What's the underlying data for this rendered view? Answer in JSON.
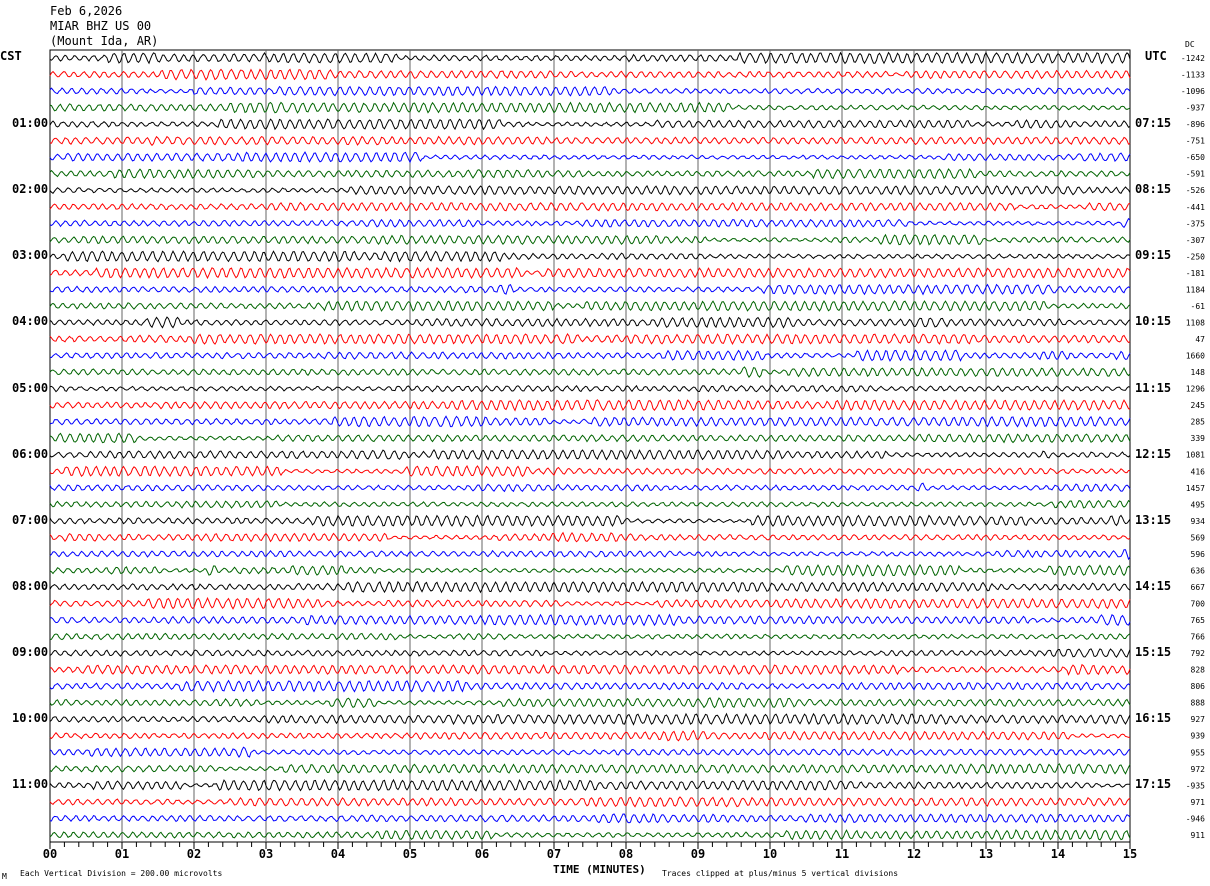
{
  "header": {
    "date": "Feb 6,2026",
    "station": "MIAR BHZ US 00",
    "location": "(Mount Ida, AR)"
  },
  "chart_data": {
    "type": "line",
    "subtype": "helicorder",
    "left_axis_label": "CST",
    "right_axis_label": "UTC",
    "dc_label": "DC",
    "left_hour_labels": [
      "01:00",
      "02:00",
      "03:00",
      "04:00",
      "05:00",
      "06:00",
      "07:00",
      "08:00",
      "09:00",
      "10:00",
      "11:00"
    ],
    "right_hour_labels": [
      "07:15",
      "08:15",
      "09:15",
      "10:15",
      "11:15",
      "12:15",
      "13:15",
      "14:15",
      "15:15",
      "16:15",
      "17:15"
    ],
    "x_ticks": [
      "00",
      "01",
      "02",
      "03",
      "04",
      "05",
      "06",
      "07",
      "08",
      "09",
      "10",
      "11",
      "12",
      "13",
      "14",
      "15"
    ],
    "xlabel": "TIME (MINUTES)",
    "xlim": [
      0,
      15
    ],
    "traces_per_hour": 4,
    "trace_count": 48,
    "trace_colors": [
      "#000000",
      "#ff0000",
      "#0000ff",
      "#006400"
    ],
    "dc_offsets": [
      "-1242",
      "-1133",
      "-1096",
      "-937",
      "-896",
      "-751",
      "-650",
      "-591",
      "-526",
      "-441",
      "-375",
      "-307",
      "-250",
      "-181",
      "1184",
      "-61",
      "1108",
      "47",
      "1660",
      "148",
      "1296",
      "245",
      "285",
      "339",
      "1081",
      "416",
      "1457",
      "495",
      "934",
      "569",
      "596",
      "636",
      "667",
      "700",
      "765",
      "766",
      "792",
      "828",
      "806",
      "888",
      "927",
      "939",
      "955",
      "972",
      "-935",
      "971",
      "-946",
      "911"
    ],
    "grid": true
  },
  "footer": {
    "scale": "Each Vertical Division =  200.00 microvolts",
    "clip": "Traces clipped at plus/minus 5 vertical divisions",
    "mark": "M"
  }
}
